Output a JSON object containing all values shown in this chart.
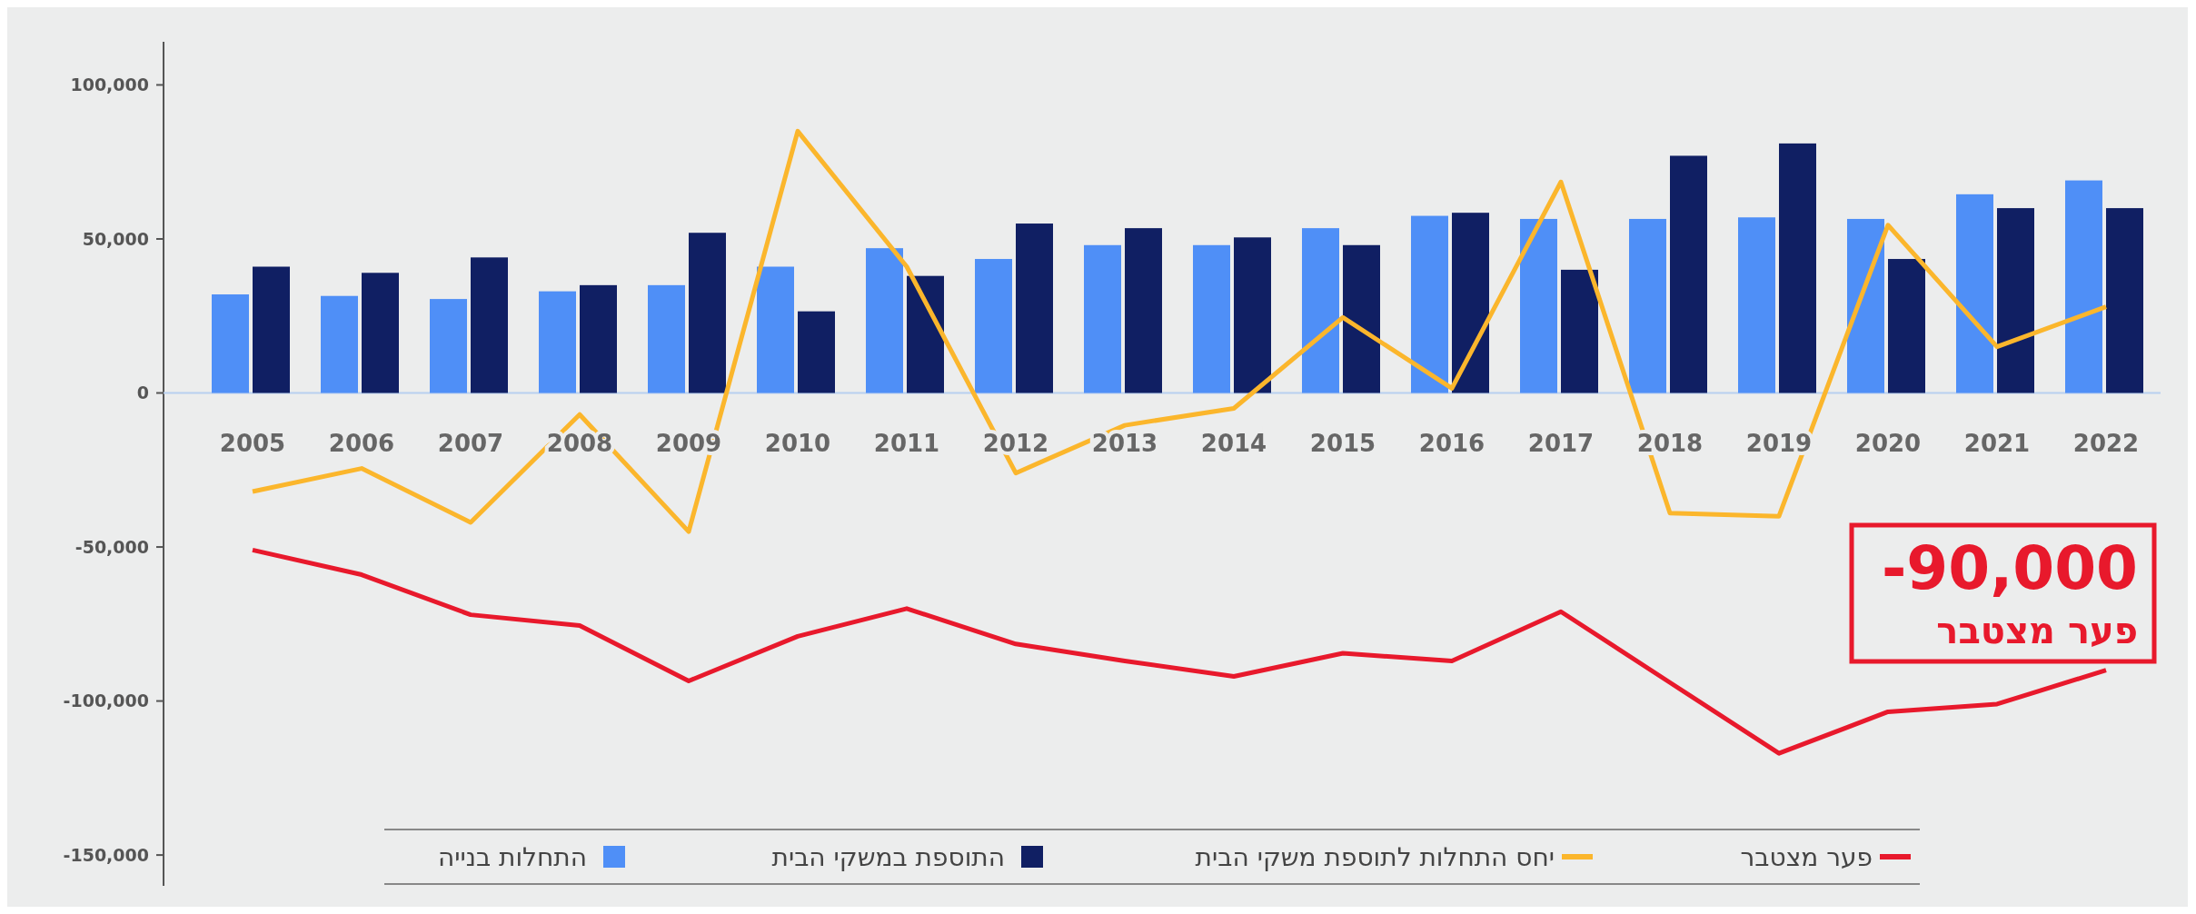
{
  "chart_data": {
    "type": "bar",
    "categories": [
      "2005",
      "2006",
      "2007",
      "2008",
      "2009",
      "2010",
      "2011",
      "2012",
      "2013",
      "2014",
      "2015",
      "2016",
      "2017",
      "2018",
      "2019",
      "2020",
      "2021",
      "2022"
    ],
    "series": [
      {
        "name": "התחלות בנייה",
        "color": "#4f8ff7",
        "values": [
          32000,
          31500,
          30500,
          33000,
          35000,
          41000,
          47000,
          43500,
          48000,
          48000,
          53500,
          57500,
          56500,
          56500,
          57000,
          56500,
          64500,
          69000
        ]
      },
      {
        "name": "התוספת במשקי הבית",
        "color": "#101f63",
        "values": [
          41000,
          39000,
          44000,
          35000,
          52000,
          26500,
          38000,
          55000,
          53500,
          50500,
          48000,
          58500,
          40000,
          77000,
          81000,
          43500,
          60000,
          60000
        ]
      },
      {
        "name": "יחס התחלות לתוספת משקי הבית",
        "type": "line",
        "color": "#fbb62c",
        "values": [
          -32000,
          -24500,
          -42000,
          -7000,
          -45000,
          85000,
          41000,
          -26000,
          -10500,
          -5000,
          24500,
          1500,
          68500,
          -39000,
          -40000,
          54500,
          15000,
          28000
        ]
      },
      {
        "name": "פער מצטבר",
        "type": "line",
        "color": "#e8192c",
        "values": [
          -51000,
          -59000,
          -72000,
          -75500,
          -93500,
          -79000,
          -70000,
          -81500,
          -87000,
          -92000,
          -84500,
          -87000,
          -71000,
          -94000,
          -117000,
          -103500,
          -101000,
          -90000
        ]
      }
    ],
    "ylim": [
      -160000,
      114000
    ],
    "yticks": [
      {
        "value": 100000,
        "label": "100,000"
      },
      {
        "value": 50000,
        "label": "50,000"
      },
      0,
      {
        "value": -50000,
        "label": "-50,000"
      },
      {
        "value": -100000,
        "label": "-100,000"
      },
      {
        "value": -150000,
        "label": "-150,000"
      }
    ],
    "grid": false,
    "legend": "bottom",
    "line_style": "solid",
    "marker": "none",
    "annotations": [
      "-90,000",
      "פער מצטבר"
    ]
  }
}
